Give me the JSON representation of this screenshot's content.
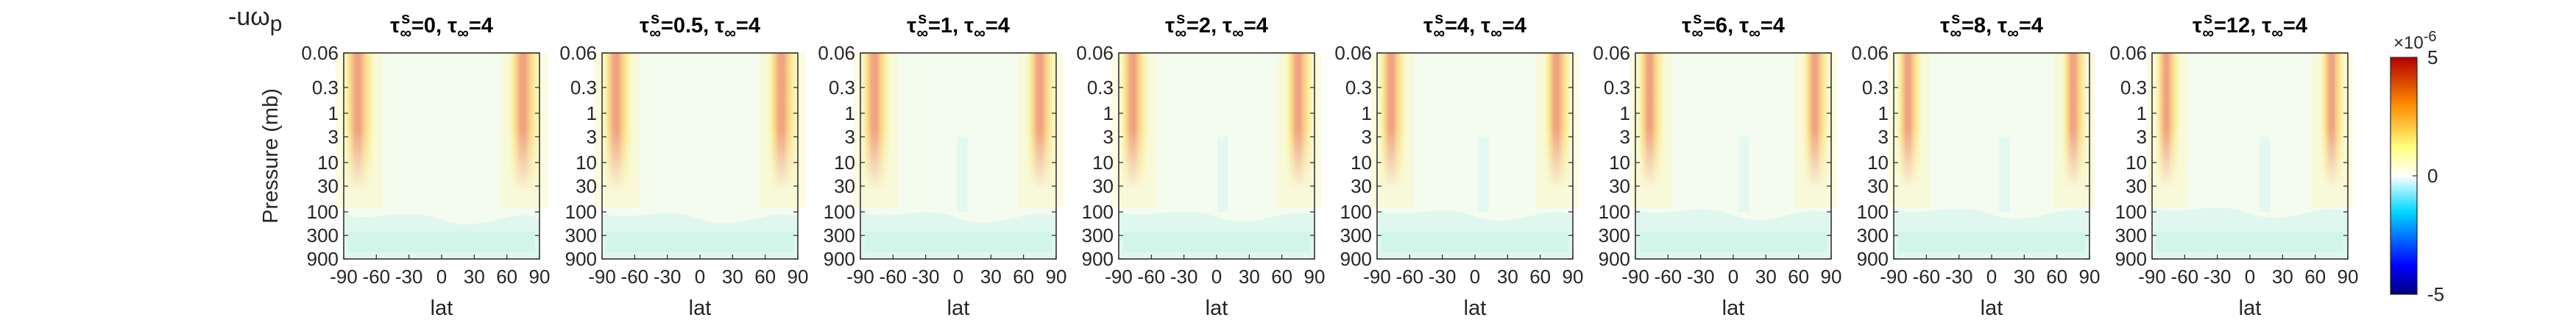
{
  "figure_label": "-uω",
  "figure_label_sub": "p",
  "chart_data": {
    "type": "heatmap",
    "quantity": "-uω_p",
    "panels": [
      {
        "title": "τ∞ˢ=0, τ∞=4",
        "tau_s": 0,
        "tau_inf": 4
      },
      {
        "title": "τ∞ˢ=0.5, τ∞=4",
        "tau_s": 0.5,
        "tau_inf": 4
      },
      {
        "title": "τ∞ˢ=1, τ∞=4",
        "tau_s": 1,
        "tau_inf": 4
      },
      {
        "title": "τ∞ˢ=2, τ∞=4",
        "tau_s": 2,
        "tau_inf": 4
      },
      {
        "title": "τ∞ˢ=4, τ∞=4",
        "tau_s": 4,
        "tau_inf": 4
      },
      {
        "title": "τ∞ˢ=6, τ∞=4",
        "tau_s": 6,
        "tau_inf": 4
      },
      {
        "title": "τ∞ˢ=8, τ∞=4",
        "tau_s": 8,
        "tau_inf": 4
      },
      {
        "title": "τ∞ˢ=12, τ∞=4",
        "tau_s": 12,
        "tau_inf": 4
      }
    ],
    "title_parts": {
      "tau_symbol": "τ",
      "inf_symbol": "∞",
      "superscript": "s",
      "separator": ", ",
      "eq": "="
    },
    "xlabel": "lat",
    "ylabel": "Pressure (mb)",
    "x_ticks": [
      -90,
      -60,
      -30,
      0,
      30,
      60,
      90
    ],
    "x_ticklabels": [
      "-90",
      "-60",
      "-30",
      "0",
      "30",
      "60",
      "90"
    ],
    "xlim": [
      -90,
      90
    ],
    "y_ticks": [
      0.06,
      0.3,
      1,
      3,
      10,
      30,
      100,
      300,
      900
    ],
    "y_ticklabels": [
      "0.06",
      "0.3",
      "1",
      "3",
      "10",
      "30",
      "100",
      "300",
      "900"
    ],
    "ylim": [
      0.06,
      900
    ],
    "y_scale": "log",
    "y_direction": "reversed",
    "colorbar": {
      "ticks": [
        5,
        0,
        -5
      ],
      "ticklabels": [
        "5",
        "0",
        "-5"
      ],
      "range": [
        -5,
        5
      ],
      "multiplier": "×10",
      "multiplier_exponent": "-6",
      "colormap": "blue-cyan-white-yellow-red",
      "colors": [
        "#00007f",
        "#0000ff",
        "#00d8ff",
        "#ffffff",
        "#ffff7f",
        "#ff8c00",
        "#b20000"
      ]
    },
    "structure": {
      "max_jet_lat_abs": 70,
      "max_value": 4.6,
      "weak_negative_region": "troposphere below ~100 mb and mid-latitude interior",
      "weak_negative_value": -0.3
    }
  }
}
